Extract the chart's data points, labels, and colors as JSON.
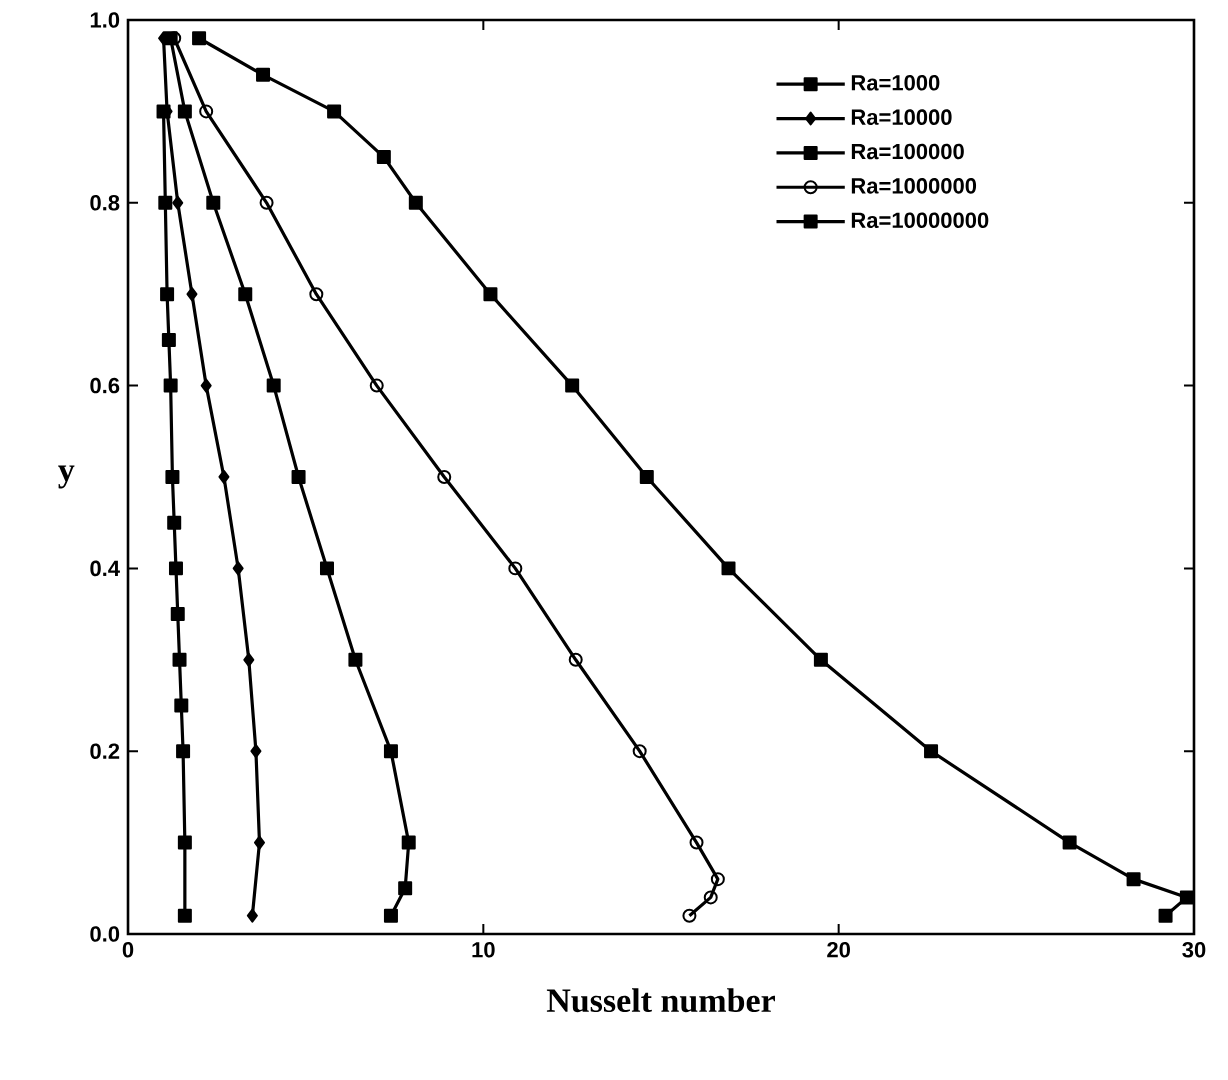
{
  "chart_data": {
    "type": "line",
    "xlabel": "Nusselt number",
    "ylabel": "y",
    "xlim": [
      0,
      30
    ],
    "ylim": [
      0,
      1
    ],
    "xticks": [
      0,
      10,
      20,
      30
    ],
    "yticks": [
      {
        "value": 0,
        "label": "0.0"
      },
      {
        "value": 0.2,
        "label": "0.2"
      },
      {
        "value": 0.4,
        "label": "0.4"
      },
      {
        "value": 0.6,
        "label": "0.6"
      },
      {
        "value": 0.8,
        "label": "0.8"
      },
      {
        "value": 1,
        "label": "1.0"
      }
    ],
    "legend": "top right",
    "grid": false,
    "series": [
      {
        "name": "Ra=1000",
        "color": "#000000",
        "marker": "square",
        "x": [
          1.6,
          1.6,
          1.55,
          1.5,
          1.45,
          1.4,
          1.35,
          1.3,
          1.25,
          1.2,
          1.15,
          1.1,
          1.05,
          1.0
        ],
        "values": [
          0.02,
          0.1,
          0.2,
          0.25,
          0.3,
          0.35,
          0.4,
          0.45,
          0.5,
          0.6,
          0.65,
          0.7,
          0.8,
          0.9
        ]
      },
      {
        "name": "Ra=10000",
        "color": "#000000",
        "marker": "diamond",
        "x": [
          3.5,
          3.7,
          3.6,
          3.4,
          3.1,
          2.7,
          2.2,
          1.8,
          1.4,
          1.1,
          1.0
        ],
        "values": [
          0.02,
          0.1,
          0.2,
          0.3,
          0.4,
          0.5,
          0.6,
          0.7,
          0.8,
          0.9,
          0.98
        ]
      },
      {
        "name": "Ra=100000",
        "color": "#000000",
        "marker": "square",
        "x": [
          7.4,
          7.8,
          7.9,
          7.4,
          6.4,
          5.6,
          4.8,
          4.1,
          3.3,
          2.4,
          1.6,
          1.2
        ],
        "values": [
          0.02,
          0.05,
          0.1,
          0.2,
          0.3,
          0.4,
          0.5,
          0.6,
          0.7,
          0.8,
          0.9,
          0.98
        ]
      },
      {
        "name": "Ra=1000000",
        "color": "#000000",
        "marker": "circle",
        "x": [
          15.8,
          16.4,
          16.6,
          16.0,
          14.4,
          12.6,
          10.9,
          8.9,
          7.0,
          5.3,
          3.9,
          2.2,
          1.3
        ],
        "values": [
          0.02,
          0.04,
          0.06,
          0.1,
          0.2,
          0.3,
          0.4,
          0.5,
          0.6,
          0.7,
          0.8,
          0.9,
          0.98
        ]
      },
      {
        "name": "Ra=10000000",
        "color": "#000000",
        "marker": "square",
        "x": [
          29.2,
          29.8,
          28.3,
          26.5,
          22.6,
          19.5,
          16.9,
          14.6,
          12.5,
          10.2,
          8.1,
          7.2,
          5.8,
          3.8,
          2.0
        ],
        "values": [
          0.02,
          0.04,
          0.06,
          0.1,
          0.2,
          0.3,
          0.4,
          0.5,
          0.6,
          0.7,
          0.8,
          0.85,
          0.9,
          0.94,
          0.98
        ]
      }
    ]
  }
}
